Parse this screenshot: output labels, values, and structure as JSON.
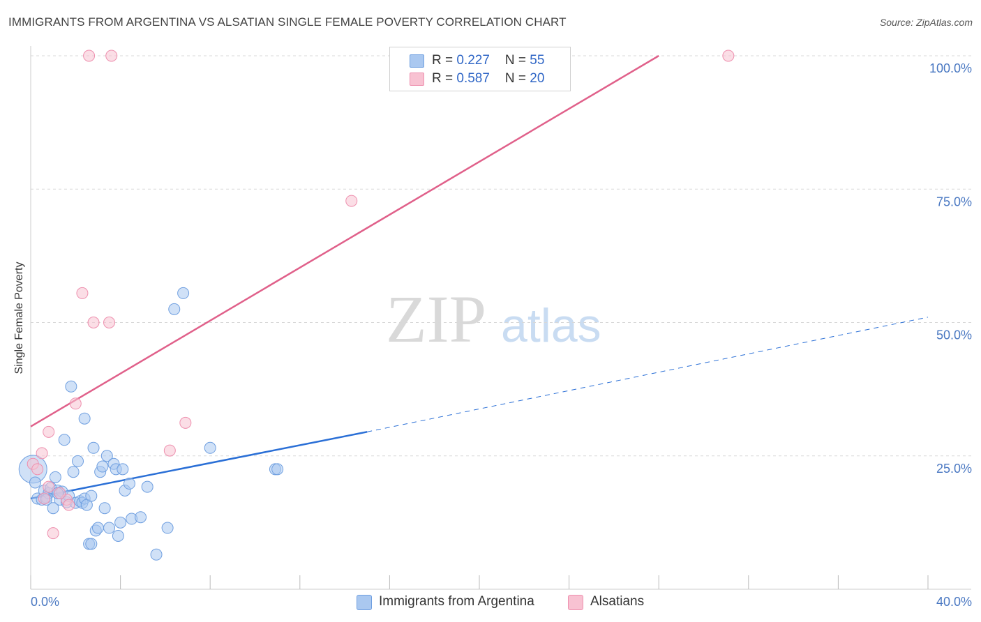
{
  "title": "IMMIGRANTS FROM ARGENTINA VS ALSATIAN SINGLE FEMALE POVERTY CORRELATION CHART",
  "source": "Source: ZipAtlas.com",
  "watermark": {
    "zip": "ZIP",
    "atlas": "atlas"
  },
  "colors": {
    "blue_fill": "#aac8f0",
    "blue_stroke": "#6f9fe0",
    "blue_line": "#2a6fd6",
    "pink_fill": "#f8c2d2",
    "pink_stroke": "#ee8fae",
    "pink_line": "#e0608a",
    "tick_label": "#4a78c2",
    "grid": "#d8d8d8"
  },
  "legend": {
    "rows": [
      {
        "r_label": "R = ",
        "r_value": "0.227",
        "n_label": "N = ",
        "n_value": "55"
      },
      {
        "r_label": "R = ",
        "r_value": "0.587",
        "n_label": "N = ",
        "n_value": "20"
      }
    ]
  },
  "chart_data": {
    "type": "scatter",
    "title": "IMMIGRANTS FROM ARGENTINA VS ALSATIAN SINGLE FEMALE POVERTY CORRELATION CHART",
    "xlabel": "",
    "ylabel": "Single Female Poverty",
    "xlim": [
      0,
      40
    ],
    "ylim": [
      0,
      100
    ],
    "x_tick_labels": [
      "0.0%",
      "40.0%"
    ],
    "y_ticks": [
      25,
      50,
      75,
      100
    ],
    "y_tick_labels": [
      "25.0%",
      "50.0%",
      "75.0%",
      "100.0%"
    ],
    "grid": true,
    "legend_position": "top-center",
    "series": [
      {
        "name": "Immigrants from Argentina",
        "color": "#aac8f0",
        "points": [
          [
            0.1,
            22.5
          ],
          [
            0.2,
            20.0
          ],
          [
            0.3,
            17.0
          ],
          [
            0.5,
            16.8
          ],
          [
            0.6,
            18.5
          ],
          [
            0.7,
            17.2
          ],
          [
            0.8,
            18.0
          ],
          [
            0.9,
            19.0
          ],
          [
            1.0,
            15.2
          ],
          [
            1.1,
            21.0
          ],
          [
            1.2,
            18.5
          ],
          [
            1.3,
            16.8
          ],
          [
            1.4,
            18.3
          ],
          [
            1.5,
            28.0
          ],
          [
            1.6,
            16.3
          ],
          [
            1.7,
            17.5
          ],
          [
            1.8,
            38.0
          ],
          [
            1.9,
            22.0
          ],
          [
            2.0,
            16.2
          ],
          [
            2.1,
            24.0
          ],
          [
            2.2,
            16.5
          ],
          [
            2.3,
            16.2
          ],
          [
            2.4,
            17.0
          ],
          [
            2.5,
            15.8
          ],
          [
            2.4,
            32.0
          ],
          [
            2.6,
            8.5
          ],
          [
            2.7,
            8.5
          ],
          [
            2.7,
            17.5
          ],
          [
            2.8,
            26.5
          ],
          [
            2.9,
            11.0
          ],
          [
            3.0,
            11.5
          ],
          [
            3.1,
            22.0
          ],
          [
            3.2,
            23.0
          ],
          [
            3.3,
            15.2
          ],
          [
            3.4,
            25.0
          ],
          [
            3.5,
            11.5
          ],
          [
            3.7,
            23.5
          ],
          [
            3.8,
            22.5
          ],
          [
            3.9,
            10.0
          ],
          [
            4.0,
            12.5
          ],
          [
            4.1,
            22.5
          ],
          [
            4.2,
            18.5
          ],
          [
            4.4,
            19.8
          ],
          [
            4.5,
            13.2
          ],
          [
            4.9,
            13.5
          ],
          [
            5.2,
            19.2
          ],
          [
            5.6,
            6.5
          ],
          [
            6.1,
            11.5
          ],
          [
            6.4,
            52.5
          ],
          [
            6.8,
            55.5
          ],
          [
            8.0,
            26.5
          ],
          [
            10.9,
            22.5
          ],
          [
            11.0,
            22.5
          ],
          [
            1.2,
            18.0
          ],
          [
            0.7,
            16.8
          ]
        ]
      },
      {
        "name": "Alsatians",
        "color": "#f8c2d2",
        "points": [
          [
            0.1,
            23.5
          ],
          [
            0.3,
            22.5
          ],
          [
            0.5,
            25.5
          ],
          [
            0.8,
            19.2
          ],
          [
            0.8,
            29.5
          ],
          [
            1.0,
            10.5
          ],
          [
            1.6,
            16.8
          ],
          [
            1.7,
            15.8
          ],
          [
            2.0,
            34.8
          ],
          [
            2.3,
            55.5
          ],
          [
            2.6,
            100.0
          ],
          [
            2.8,
            50.0
          ],
          [
            3.5,
            50.0
          ],
          [
            3.6,
            100.0
          ],
          [
            6.2,
            26.0
          ],
          [
            6.9,
            31.2
          ],
          [
            14.3,
            72.8
          ],
          [
            31.1,
            100.0
          ],
          [
            0.6,
            17.0
          ],
          [
            1.3,
            18.0
          ]
        ]
      }
    ],
    "trendlines": [
      {
        "series": "Immigrants from Argentina",
        "x": [
          0,
          15.0,
          40.0
        ],
        "y": [
          17.0,
          29.5,
          51.0
        ],
        "style": "solid-then-dashed"
      },
      {
        "series": "Alsatians",
        "x": [
          0,
          28.0
        ],
        "y": [
          30.5,
          100.0
        ],
        "style": "solid"
      }
    ]
  }
}
